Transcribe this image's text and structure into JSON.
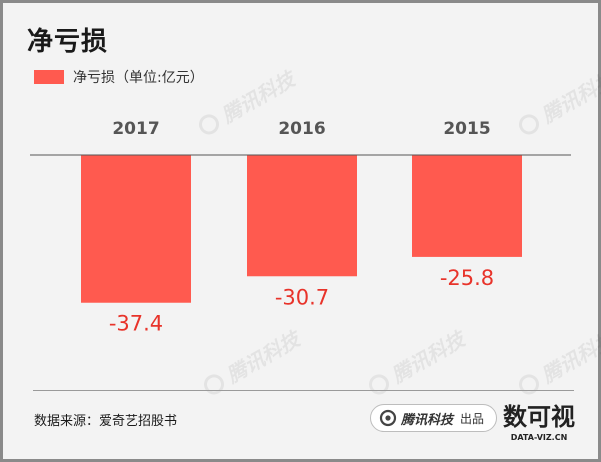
{
  "title": "净亏损",
  "legend": {
    "label": "净亏损（单位:亿元）",
    "color": "#ff5a4f"
  },
  "source": "数据来源：爱奇艺招股书",
  "brand": {
    "name": "腾讯科技",
    "suffix": "出品",
    "watermark": "腾讯科技",
    "icon": "tencent-tech-logo-icon"
  },
  "logo": {
    "main": "数可视",
    "sub": "DATA-VIZ.CN"
  },
  "colors": {
    "bar": "#ff5a4f",
    "label": "#e8332a",
    "axis": "#555555",
    "year": "#555555"
  },
  "chart_data": {
    "type": "bar",
    "title": "净亏损",
    "categories": [
      "2017",
      "2016",
      "2015"
    ],
    "series": [
      {
        "name": "净亏损（单位:亿元）",
        "values": [
          -37.4,
          -30.7,
          -25.8
        ]
      }
    ],
    "ylim": [
      -40,
      0
    ],
    "data_labels": [
      "-37.4",
      "-30.7",
      "-25.8"
    ],
    "category_axis_position": "top",
    "legend_position": "top-left",
    "grid": false
  }
}
